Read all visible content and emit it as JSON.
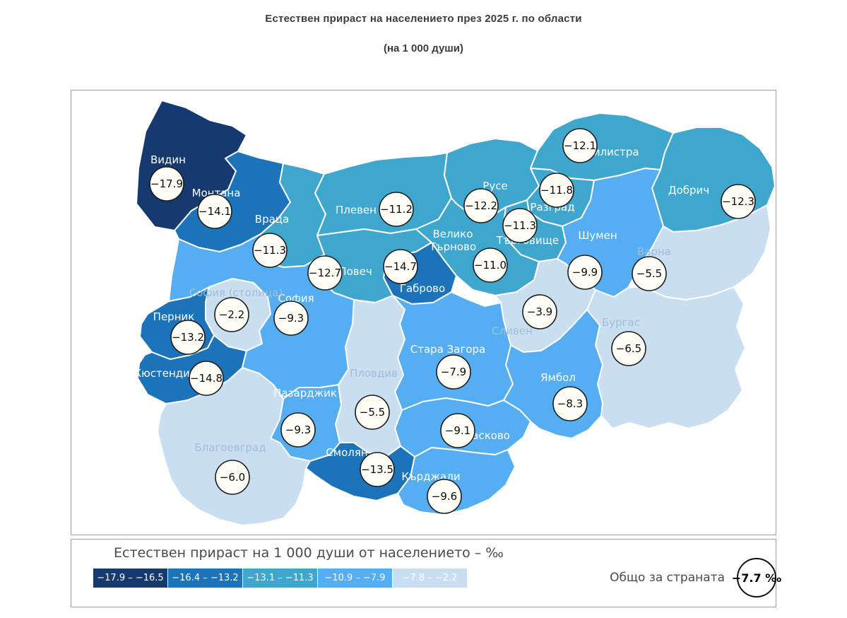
{
  "title": "Естествен прираст на населението през 2025 г. по области",
  "subtitle": "(на 1 000 души)",
  "colors": {
    "classes": [
      "#16396f",
      "#1b73ba",
      "#3fa6ce",
      "#55aef1",
      "#c9def1"
    ],
    "region_label": "#ffffff",
    "pale_region_label": "#9fbfd8",
    "badge_bg": "#fffef6",
    "badge_border": "#1c1c1c",
    "border": "#ffffff"
  },
  "map": {
    "regions": [
      {
        "id": "vidin",
        "name": "Видин",
        "value": -17.9,
        "class": 0
      },
      {
        "id": "montana",
        "name": "Монтана",
        "value": -14.1,
        "class": 1
      },
      {
        "id": "vratsa",
        "name": "Враца",
        "value": -11.3,
        "class": 2
      },
      {
        "id": "pleven",
        "name": "Плевен",
        "value": -11.2,
        "class": 2
      },
      {
        "id": "lovech",
        "name": "Ловеч",
        "value": -12.7,
        "class": 2
      },
      {
        "id": "gabrovo",
        "name": "Габрово",
        "value": -14.7,
        "class": 1
      },
      {
        "id": "veliko-tarnovo",
        "name": "Велико Търново",
        "value": -11.0,
        "class": 2
      },
      {
        "id": "ruse",
        "name": "Русе",
        "value": -12.2,
        "class": 2
      },
      {
        "id": "razgrad",
        "name": "Разград",
        "value": -11.8,
        "class": 2
      },
      {
        "id": "silistra",
        "name": "Силистра",
        "value": -12.1,
        "class": 2
      },
      {
        "id": "targovishte",
        "name": "Търговище",
        "value": -11.3,
        "class": 2
      },
      {
        "id": "dobrich",
        "name": "Добрич",
        "value": -12.3,
        "class": 2
      },
      {
        "id": "shumen",
        "name": "Шумен",
        "value": -9.9,
        "class": 3
      },
      {
        "id": "varna",
        "name": "Варна",
        "value": -5.5,
        "class": 4
      },
      {
        "id": "burgas",
        "name": "Бургас",
        "value": -6.5,
        "class": 4
      },
      {
        "id": "sliven",
        "name": "Сливен",
        "value": -3.9,
        "class": 4
      },
      {
        "id": "yambol",
        "name": "Ямбол",
        "value": -8.3,
        "class": 3
      },
      {
        "id": "stara-zagora",
        "name": "Стара Загора",
        "value": -7.9,
        "class": 3
      },
      {
        "id": "haskovo",
        "name": "Хасково",
        "value": -9.1,
        "class": 3
      },
      {
        "id": "kardzhali",
        "name": "Кърджали",
        "value": -9.6,
        "class": 3
      },
      {
        "id": "smolyan",
        "name": "Смолян",
        "value": -13.5,
        "class": 1
      },
      {
        "id": "plovdiv",
        "name": "Пловдив",
        "value": -5.5,
        "class": 4
      },
      {
        "id": "pazardzhik",
        "name": "Пазарджик",
        "value": -9.3,
        "class": 3
      },
      {
        "id": "blagoevgrad",
        "name": "Благоевград",
        "value": -6.0,
        "class": 4
      },
      {
        "id": "kyustendil",
        "name": "Кюстендил",
        "value": -14.8,
        "class": 1
      },
      {
        "id": "pernik",
        "name": "Перник",
        "value": -13.2,
        "class": 1
      },
      {
        "id": "sofia-oblast",
        "name": "София",
        "value": -9.3,
        "class": 3
      },
      {
        "id": "sofia-grad",
        "name": "София (столица)",
        "value": -2.2,
        "class": 4
      }
    ]
  },
  "legend": {
    "title": "Естествен прираст на 1 000 души от населението – ‰",
    "classes": [
      {
        "label": "−17.9 – −16.5",
        "color": "#16396f"
      },
      {
        "label": "−16.4 – −13.2",
        "color": "#1b73ba"
      },
      {
        "label": "−13.1 – −11.3",
        "color": "#3fa6ce"
      },
      {
        "label": "−10.9 – −7.9",
        "color": "#55aef1"
      },
      {
        "label": "−7.8 – −2.2",
        "color": "#c9def1"
      }
    ],
    "total_label": "Общо за страната",
    "total_value": "−7.7 ‰"
  },
  "chart_data": {
    "type": "heatmap",
    "subtype": "choropleth-map",
    "title": "Естествен прираст на населението през 2025 г. по области",
    "unit": "на 1 000 души (‰)",
    "categories": [
      "Видин",
      "Монтана",
      "Враца",
      "Плевен",
      "Ловеч",
      "Габрово",
      "Велико Търново",
      "Русе",
      "Разград",
      "Силистра",
      "Търговище",
      "Добрич",
      "Шумен",
      "Варна",
      "Бургас",
      "Сливен",
      "Ямбол",
      "Стара Загора",
      "Хасково",
      "Кърджали",
      "Смолян",
      "Пловдив",
      "Пазарджик",
      "Благоевград",
      "Кюстендил",
      "Перник",
      "София",
      "София (столица)"
    ],
    "values": [
      -17.9,
      -14.1,
      -11.3,
      -11.2,
      -12.7,
      -14.7,
      -11.0,
      -12.2,
      -11.8,
      -12.1,
      -11.3,
      -12.3,
      -9.9,
      -5.5,
      -6.5,
      -3.9,
      -8.3,
      -7.9,
      -9.1,
      -9.6,
      -13.5,
      -5.5,
      -9.3,
      -6.0,
      -14.8,
      -13.2,
      -9.3,
      -2.2
    ],
    "total": -7.7,
    "legend_bins": [
      "−17.9 – −16.5",
      "−16.4 – −13.2",
      "−13.1 – −11.3",
      "−10.9 – −7.9",
      "−7.8 – −2.2"
    ]
  }
}
